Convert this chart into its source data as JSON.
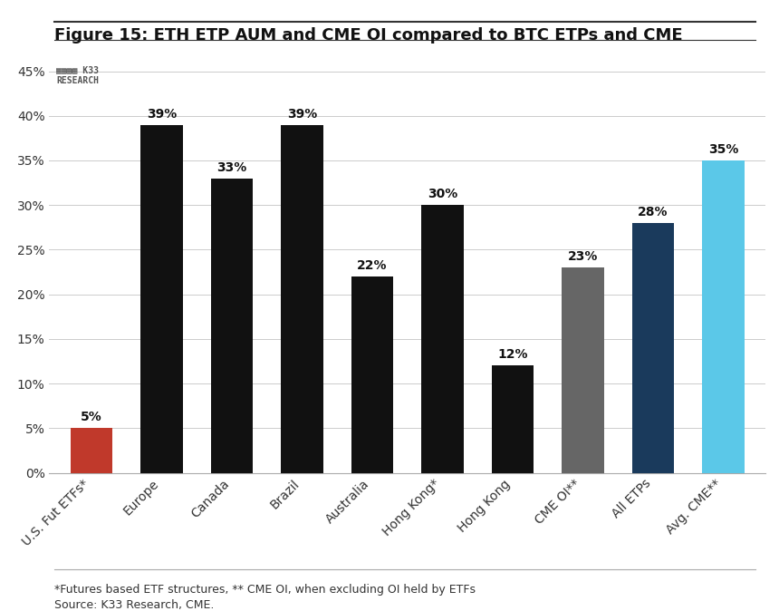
{
  "title": "Figure 15: ETH ETP AUM and CME OI compared to BTC ETPs and CME",
  "categories": [
    "U.S. Fut ETFs*",
    "Europe",
    "Canada",
    "Brazil",
    "Australia",
    "Hong Kong*",
    "Hong Kong",
    "CME OI**",
    "All ETPs",
    "Avg. CME**"
  ],
  "values": [
    5,
    39,
    33,
    39,
    22,
    30,
    12,
    23,
    28,
    35
  ],
  "bar_colors": [
    "#c0392b",
    "#111111",
    "#111111",
    "#111111",
    "#111111",
    "#111111",
    "#111111",
    "#666666",
    "#1a3a5c",
    "#5bc8e8"
  ],
  "labels": [
    "5%",
    "39%",
    "33%",
    "39%",
    "22%",
    "30%",
    "12%",
    "23%",
    "28%",
    "35%"
  ],
  "ylim": [
    0,
    47
  ],
  "yticks": [
    0,
    5,
    10,
    15,
    20,
    25,
    30,
    35,
    40,
    45
  ],
  "ytick_labels": [
    "0%",
    "5%",
    "10%",
    "15%",
    "20%",
    "25%",
    "30%",
    "35%",
    "40%",
    "45%"
  ],
  "footnote1": "*Futures based ETF structures, ** CME OI, when excluding OI held by ETFs",
  "footnote2": "Source: K33 Research, CME.",
  "watermark_text": "K33\nRESEARCH",
  "background_color": "#ffffff",
  "title_fontsize": 13,
  "label_fontsize": 10,
  "tick_fontsize": 10,
  "footnote_fontsize": 9
}
